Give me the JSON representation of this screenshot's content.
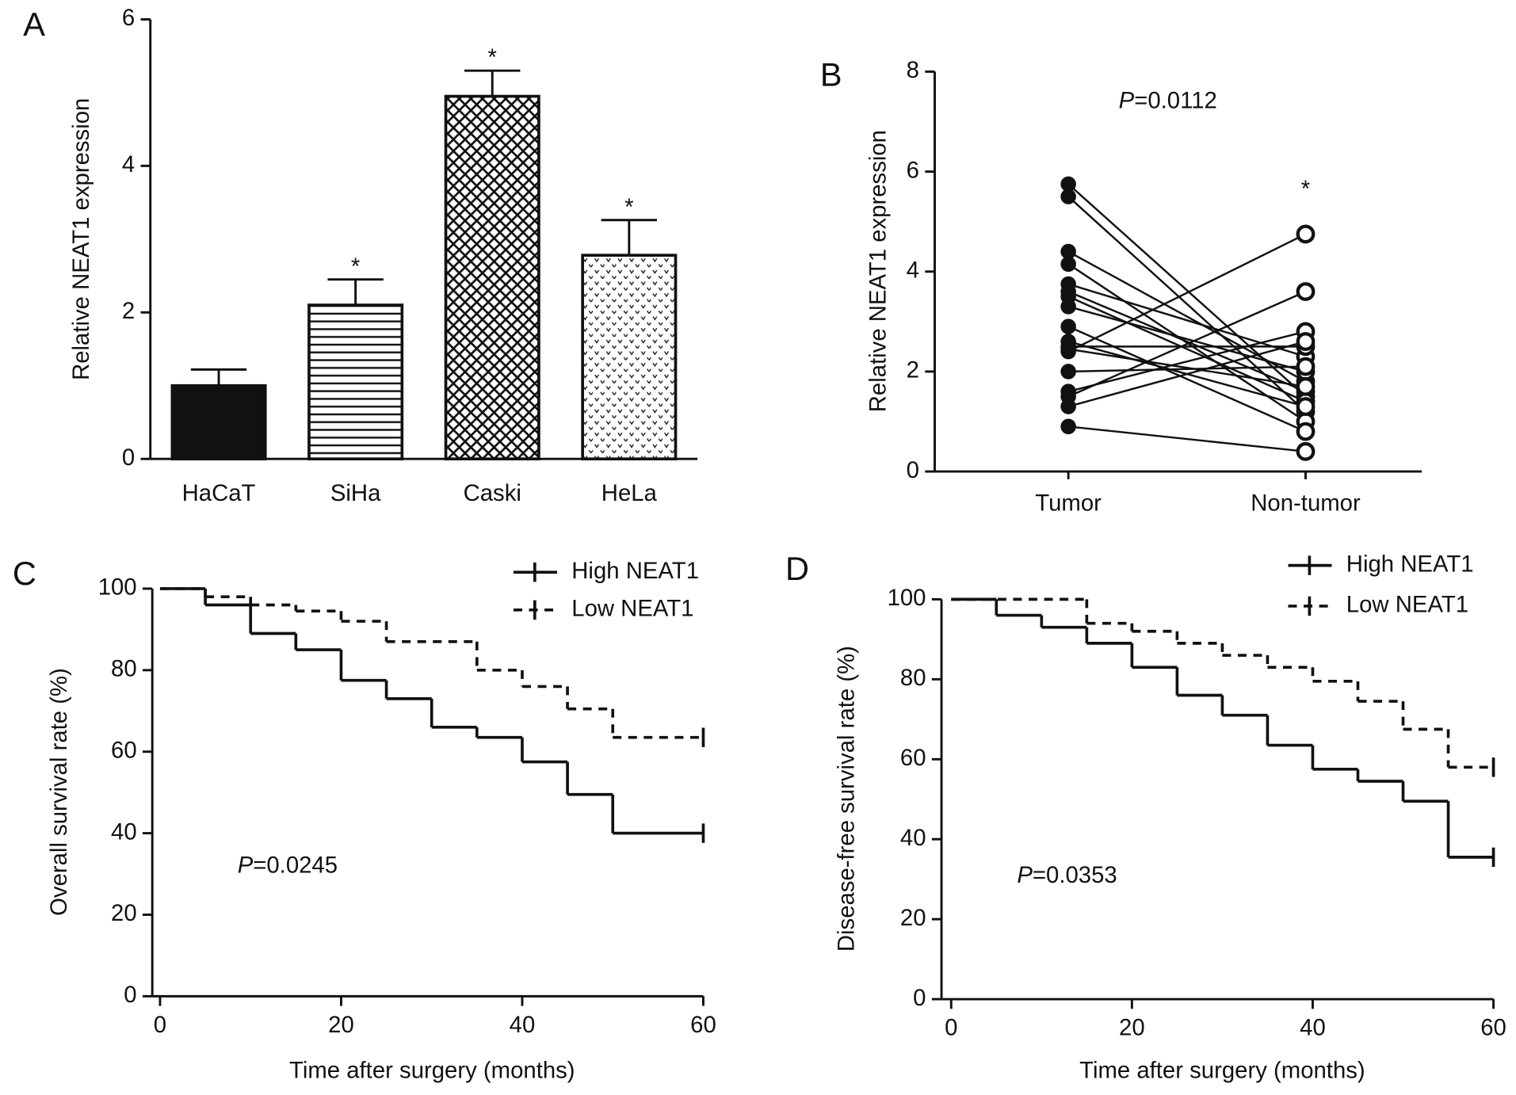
{
  "chart_data": [
    {
      "type": "bar",
      "panel": "A",
      "y_label": "Relative NEAT1 expression",
      "categories": [
        "HaCaT",
        "SiHa",
        "Caski",
        "HeLa"
      ],
      "values": [
        1.0,
        2.1,
        4.95,
        2.78
      ],
      "errors": [
        0.22,
        0.35,
        0.35,
        0.48
      ],
      "significance": [
        null,
        "*",
        "*",
        "*"
      ],
      "patterns": [
        "solid",
        "hlines",
        "crosshatch",
        "dots"
      ],
      "color": "#111111",
      "ylim": [
        0,
        6
      ],
      "yticks": [
        0,
        2,
        4,
        6
      ]
    },
    {
      "type": "paired",
      "panel": "B",
      "y_label": "Relative NEAT1 expression",
      "categories": [
        "Tumor",
        "Non-tumor"
      ],
      "annotation_italic": "P",
      "annotation": "=0.0112",
      "significance": [
        null,
        "*"
      ],
      "values": [
        [
          5.75,
          1.5
        ],
        [
          5.5,
          1.2
        ],
        [
          4.4,
          1.8
        ],
        [
          4.15,
          1.0
        ],
        [
          3.75,
          2.3
        ],
        [
          3.6,
          1.6
        ],
        [
          3.5,
          1.4
        ],
        [
          3.3,
          2.0
        ],
        [
          2.9,
          0.8
        ],
        [
          2.6,
          1.3
        ],
        [
          2.5,
          2.5
        ],
        [
          2.45,
          1.7
        ],
        [
          2.4,
          4.75
        ],
        [
          2.0,
          2.1
        ],
        [
          1.6,
          2.8
        ],
        [
          1.5,
          3.6
        ],
        [
          1.3,
          2.6
        ],
        [
          0.9,
          0.4
        ]
      ],
      "color": "#111111",
      "ylim": [
        0,
        8
      ],
      "yticks": [
        0,
        2,
        4,
        6,
        8
      ]
    },
    {
      "type": "step",
      "panel": "C",
      "x_label": "Time after surgery (months)",
      "y_label": "Overall survival rate (%)",
      "annotation_italic": "P",
      "annotation": "=0.0245",
      "legend": "top-right",
      "series": [
        {
          "name": "High NEAT1",
          "color": "#111111",
          "dashed": false,
          "x": [
            0,
            5,
            10,
            15,
            20,
            25,
            30,
            35,
            40,
            45,
            50,
            60
          ],
          "values": [
            100,
            96,
            89,
            85,
            77.5,
            73,
            66,
            63.5,
            57.5,
            49.5,
            40,
            40
          ]
        },
        {
          "name": "Low NEAT1",
          "color": "#111111",
          "dashed": true,
          "x": [
            0,
            5,
            10,
            15,
            20,
            25,
            35,
            40,
            45,
            50,
            60
          ],
          "values": [
            100,
            98,
            96,
            94.5,
            92,
            87,
            80,
            76,
            70.5,
            63.5,
            63.5
          ]
        }
      ],
      "xlim": [
        0,
        60
      ],
      "xticks": [
        0,
        20,
        40,
        60
      ],
      "ylim": [
        0,
        100
      ],
      "yticks": [
        0,
        20,
        40,
        60,
        80,
        100
      ]
    },
    {
      "type": "step",
      "panel": "D",
      "x_label": "Time after surgery (months)",
      "y_label": "Disease-free survival rate (%)",
      "annotation_italic": "P",
      "annotation": "=0.0353",
      "legend": "top-right",
      "series": [
        {
          "name": "High NEAT1",
          "color": "#111111",
          "dashed": false,
          "x": [
            0,
            5,
            10,
            15,
            20,
            25,
            30,
            35,
            40,
            45,
            50,
            55,
            60
          ],
          "values": [
            100,
            96,
            93,
            89,
            83,
            76,
            71,
            63.5,
            57.5,
            54.5,
            49.5,
            35.5,
            35.5
          ]
        },
        {
          "name": "Low NEAT1",
          "color": "#111111",
          "dashed": true,
          "x": [
            0,
            15,
            20,
            25,
            30,
            35,
            40,
            45,
            50,
            55,
            60
          ],
          "values": [
            100,
            94,
            92,
            89,
            86,
            83,
            79.5,
            74.5,
            67.5,
            58,
            58
          ]
        }
      ],
      "xlim": [
        0,
        60
      ],
      "xticks": [
        0,
        20,
        40,
        60
      ],
      "ylim": [
        0,
        100
      ],
      "yticks": [
        0,
        20,
        40,
        60,
        80,
        100
      ]
    }
  ]
}
